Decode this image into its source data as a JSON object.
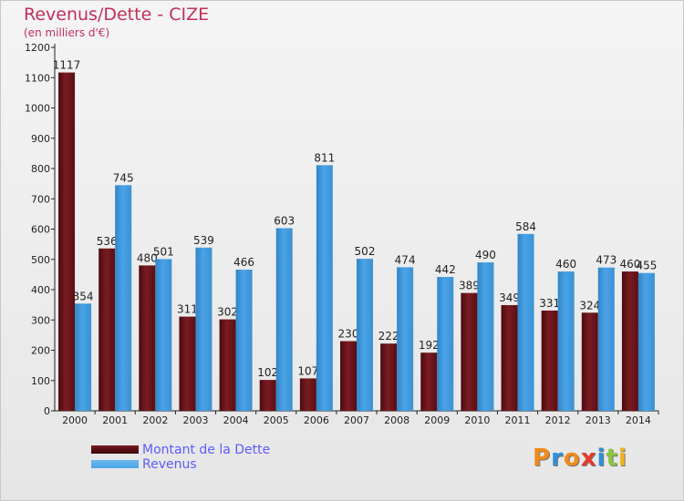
{
  "title": "Revenus/Dette - CIZE",
  "subtitle": "(en milliers d'€)",
  "colors": {
    "dette": "#7a1c22",
    "revenus": "#4aa3e6",
    "title": "#c0305a",
    "legend_text": "#5c5cff"
  },
  "legend": {
    "dette_label": "Montant de la Dette",
    "revenus_label": "Revenus"
  },
  "logo": {
    "text": "Proxiti"
  },
  "chart_data": {
    "type": "bar",
    "title": "Revenus/Dette - CIZE",
    "ylabel": "(en milliers d'€)",
    "xlabel": "",
    "ylim": [
      0,
      1200
    ],
    "yticks": [
      0,
      100,
      200,
      300,
      400,
      500,
      600,
      700,
      800,
      900,
      1000,
      1100,
      1200
    ],
    "categories": [
      "2000",
      "2001",
      "2002",
      "2003",
      "2004",
      "2005",
      "2006",
      "2007",
      "2008",
      "2009",
      "2010",
      "2011",
      "2012",
      "2013",
      "2014"
    ],
    "series": [
      {
        "name": "Montant de la Dette",
        "values": [
          1117,
          536,
          480,
          311,
          302,
          102,
          107,
          230,
          222,
          192,
          389,
          349,
          331,
          324,
          460
        ]
      },
      {
        "name": "Revenus",
        "values": [
          354,
          745,
          501,
          539,
          466,
          603,
          811,
          502,
          474,
          442,
          490,
          584,
          460,
          473,
          455
        ]
      }
    ],
    "grid": false,
    "legend_position": "bottom-left"
  }
}
